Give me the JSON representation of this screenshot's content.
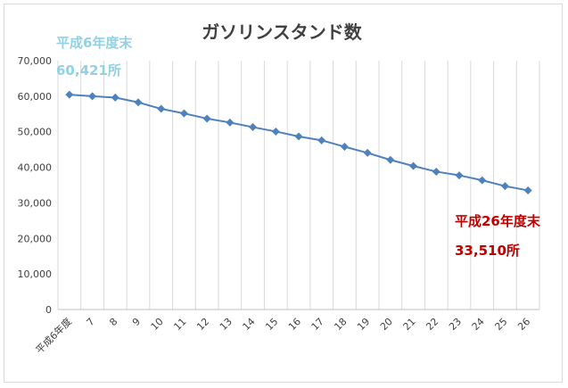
{
  "chart_data": {
    "type": "line",
    "title": "ガソリンスタンド数",
    "categories": [
      "平成6年度",
      "7",
      "8",
      "9",
      "10",
      "11",
      "12",
      "13",
      "14",
      "15",
      "16",
      "17",
      "18",
      "19",
      "20",
      "21",
      "22",
      "23",
      "24",
      "25",
      "26"
    ],
    "series": [
      {
        "values": [
          60421,
          59990,
          59615,
          58263,
          56444,
          55153,
          53704,
          52592,
          51294,
          50067,
          48672,
          47584,
          45792,
          44057,
          42090,
          40357,
          38777,
          37743,
          36349,
          34706,
          33510
        ],
        "color": "#4f81bd"
      }
    ],
    "ylim": [
      0,
      70000
    ],
    "yticks": [
      "0",
      "10,000",
      "20,000",
      "30,000",
      "40,000",
      "50,000",
      "60,000",
      "70,000"
    ],
    "xlabel": "",
    "ylabel": "",
    "grid": "vertical",
    "annotations": [
      {
        "line1": "平成6年度末",
        "line2": "60,421所",
        "color": "#92d1e3"
      },
      {
        "line1": "平成26年度末",
        "line2": "33,510所",
        "color": "#c00000"
      }
    ]
  }
}
